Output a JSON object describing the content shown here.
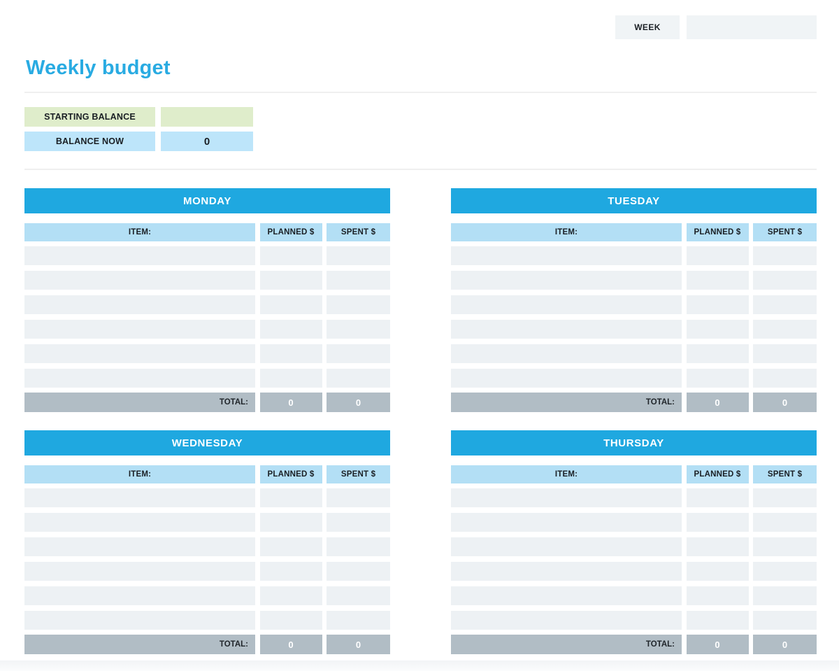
{
  "header": {
    "week_label": "WEEK",
    "week_value": ""
  },
  "title": "Weekly budget",
  "balance": {
    "starting_label": "STARTING BALANCE",
    "starting_value": "",
    "now_label": "BALANCE NOW",
    "now_value": "0"
  },
  "columns": {
    "item": "ITEM:",
    "planned": "PLANNED $",
    "spent": "SPENT $"
  },
  "total_label": "TOTAL:",
  "days": [
    {
      "name": "MONDAY",
      "rows": [
        {
          "item": "",
          "planned": "",
          "spent": ""
        },
        {
          "item": "",
          "planned": "",
          "spent": ""
        },
        {
          "item": "",
          "planned": "",
          "spent": ""
        },
        {
          "item": "",
          "planned": "",
          "spent": ""
        },
        {
          "item": "",
          "planned": "",
          "spent": ""
        },
        {
          "item": "",
          "planned": "",
          "spent": ""
        }
      ],
      "total_planned": "0",
      "total_spent": "0"
    },
    {
      "name": "TUESDAY",
      "rows": [
        {
          "item": "",
          "planned": "",
          "spent": ""
        },
        {
          "item": "",
          "planned": "",
          "spent": ""
        },
        {
          "item": "",
          "planned": "",
          "spent": ""
        },
        {
          "item": "",
          "planned": "",
          "spent": ""
        },
        {
          "item": "",
          "planned": "",
          "spent": ""
        },
        {
          "item": "",
          "planned": "",
          "spent": ""
        }
      ],
      "total_planned": "0",
      "total_spent": "0"
    },
    {
      "name": "WEDNESDAY",
      "rows": [
        {
          "item": "",
          "planned": "",
          "spent": ""
        },
        {
          "item": "",
          "planned": "",
          "spent": ""
        },
        {
          "item": "",
          "planned": "",
          "spent": ""
        },
        {
          "item": "",
          "planned": "",
          "spent": ""
        },
        {
          "item": "",
          "planned": "",
          "spent": ""
        },
        {
          "item": "",
          "planned": "",
          "spent": ""
        }
      ],
      "total_planned": "0",
      "total_spent": "0"
    },
    {
      "name": "THURSDAY",
      "rows": [
        {
          "item": "",
          "planned": "",
          "spent": ""
        },
        {
          "item": "",
          "planned": "",
          "spent": ""
        },
        {
          "item": "",
          "planned": "",
          "spent": ""
        },
        {
          "item": "",
          "planned": "",
          "spent": ""
        },
        {
          "item": "",
          "planned": "",
          "spent": ""
        },
        {
          "item": "",
          "planned": "",
          "spent": ""
        }
      ],
      "total_planned": "0",
      "total_spent": "0"
    }
  ],
  "colors": {
    "accent_blue": "#29abe2",
    "header_blue": "#1fa8e0",
    "light_blue": "#b3dff5",
    "balance_blue": "#bde5fa",
    "green": "#dfedcb",
    "row_grey": "#edf1f4",
    "total_grey": "#b1bdc5",
    "box_grey": "#f0f4f6"
  }
}
